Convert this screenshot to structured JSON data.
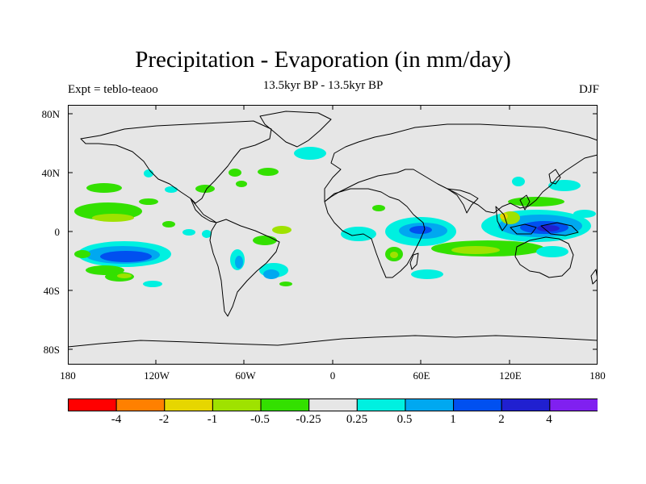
{
  "title": "Precipitation - Evaporation (in mm/day)",
  "subtitle": "13.5kyr BP - 13.5kyr BP",
  "expt_label": "Expt = teblo-teaoo",
  "season": "DJF",
  "axes": {
    "lat_ticks": [
      "80N",
      "40N",
      "0",
      "40S",
      "80S"
    ],
    "lon_ticks": [
      "180",
      "120W",
      "60W",
      "0",
      "60E",
      "120E",
      "180"
    ]
  },
  "colorbar": {
    "colors": [
      "#ff0000",
      "#ff8000",
      "#e6d600",
      "#9fe200",
      "#33e000",
      "#e6e6e6",
      "#00f0e0",
      "#00a8f0",
      "#0050f0",
      "#2020d0",
      "#8020f0"
    ],
    "labels": [
      "-4",
      "-2",
      "-1",
      "-0.5",
      "-0.25",
      "0.25",
      "0.5",
      "1",
      "2",
      "4"
    ]
  },
  "colors": {
    "land_ocean_background": "#e6e6e6",
    "coastline": "#000000"
  }
}
